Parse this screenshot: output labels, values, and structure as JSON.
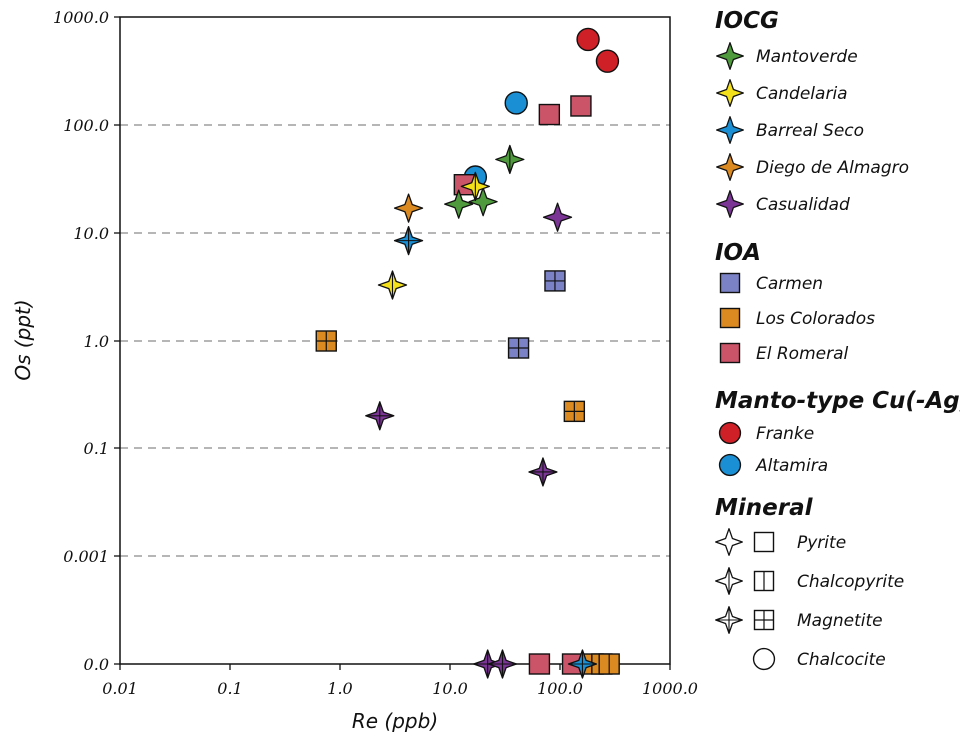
{
  "chart_data": {
    "type": "scatter",
    "xlabel": "Re (ppb)",
    "ylabel": "Os (ppt)",
    "x_scale": "log",
    "xlim": [
      0.01,
      1000
    ],
    "x_tick_values": [
      0.01,
      0.1,
      1,
      10,
      100,
      1000
    ],
    "x_tick_labels": [
      "0.01",
      "0.1",
      "1.0",
      "10.0",
      "100.0",
      "1000.0"
    ],
    "y_tick_labels": [
      "1000.0",
      "100.0",
      "10.0",
      "1.0",
      "0.1",
      "0.001",
      "0.0"
    ],
    "grid": "horizontal dashed",
    "legend_position": "right",
    "legend": [
      {
        "heading": "IOCG",
        "items": [
          {
            "label": "Mantoverde",
            "shape": "star",
            "color": "#4e9a3c"
          },
          {
            "label": "Candelaria",
            "shape": "star",
            "color": "#f4e11b"
          },
          {
            "label": "Barreal Seco",
            "shape": "star",
            "color": "#1a8fd4"
          },
          {
            "label": "Diego de Almagro",
            "shape": "star",
            "color": "#db8a22"
          },
          {
            "label": "Casualidad",
            "shape": "star",
            "color": "#7a3595"
          }
        ]
      },
      {
        "heading": "IOA",
        "items": [
          {
            "label": "Carmen",
            "shape": "square",
            "color": "#7c82c6"
          },
          {
            "label": "Los Colorados",
            "shape": "square",
            "color": "#db8a22"
          },
          {
            "label": "El Romeral",
            "shape": "square",
            "color": "#cb5468"
          }
        ]
      },
      {
        "heading": "Manto-type Cu(-Ag)",
        "items": [
          {
            "label": "Franke",
            "shape": "circle",
            "color": "#cf2027"
          },
          {
            "label": "Altamira",
            "shape": "circle",
            "color": "#1a8fd4"
          }
        ]
      },
      {
        "heading": "Mineral",
        "items": [
          {
            "label": "Pyrite",
            "shapes": [
              "star",
              "square"
            ],
            "mineral": "pyrite"
          },
          {
            "label": "Chalcopyrite",
            "shapes": [
              "star",
              "square"
            ],
            "mineral": "chalcopyrite"
          },
          {
            "label": "Magnetite",
            "shapes": [
              "star",
              "square"
            ],
            "mineral": "magnetite"
          },
          {
            "label": "Chalcocite",
            "shapes": [
              "circle"
            ],
            "mineral": "chalcocite"
          }
        ]
      }
    ],
    "points": [
      {
        "group": "Franke",
        "shape": "circle",
        "color": "#cf2027",
        "mineral": "chalcocite",
        "x": 180,
        "y": 620
      },
      {
        "group": "Franke",
        "shape": "circle",
        "color": "#cf2027",
        "mineral": "chalcocite",
        "x": 270,
        "y": 390
      },
      {
        "group": "Altamira",
        "shape": "circle",
        "color": "#1a8fd4",
        "mineral": "chalcocite",
        "x": 40,
        "y": 160
      },
      {
        "group": "Altamira",
        "shape": "circle",
        "color": "#1a8fd4",
        "mineral": "chalcocite",
        "x": 17,
        "y": 33
      },
      {
        "group": "El Romeral",
        "shape": "square",
        "color": "#cb5468",
        "mineral": "pyrite",
        "x": 80,
        "y": 125
      },
      {
        "group": "El Romeral",
        "shape": "square",
        "color": "#cb5468",
        "mineral": "pyrite",
        "x": 155,
        "y": 150
      },
      {
        "group": "El Romeral",
        "shape": "square",
        "color": "#cb5468",
        "mineral": "pyrite",
        "x": 13.5,
        "y": 28
      },
      {
        "group": "Mantoverde",
        "shape": "star",
        "color": "#4e9a3c",
        "mineral": "chalcopyrite",
        "x": 35,
        "y": 48
      },
      {
        "group": "Mantoverde",
        "shape": "star",
        "color": "#4e9a3c",
        "mineral": "pyrite",
        "x": 12,
        "y": 18.5
      },
      {
        "group": "Mantoverde",
        "shape": "star",
        "color": "#4e9a3c",
        "mineral": "pyrite",
        "x": 20,
        "y": 19.5
      },
      {
        "group": "Candelaria",
        "shape": "star",
        "color": "#f4e11b",
        "mineral": "chalcopyrite",
        "x": 17,
        "y": 27
      },
      {
        "group": "Candelaria",
        "shape": "star",
        "color": "#f4e11b",
        "mineral": "chalcopyrite",
        "x": 3,
        "y": 3.3
      },
      {
        "group": "Diego de Almagro",
        "shape": "star",
        "color": "#db8a22",
        "mineral": "pyrite",
        "x": 4.2,
        "y": 17
      },
      {
        "group": "Barreal Seco",
        "shape": "star",
        "color": "#1a8fd4",
        "mineral": "magnetite",
        "x": 4.2,
        "y": 8.5
      },
      {
        "group": "Casualidad",
        "shape": "star",
        "color": "#7a3595",
        "mineral": "pyrite",
        "x": 95,
        "y": 14
      },
      {
        "group": "Casualidad",
        "shape": "star",
        "color": "#7a3595",
        "mineral": "magnetite",
        "x": 2.3,
        "y": 0.2
      },
      {
        "group": "Casualidad",
        "shape": "star",
        "color": "#7a3595",
        "mineral": "magnetite",
        "x": 70,
        "y": 0.06
      },
      {
        "group": "Carmen",
        "shape": "square",
        "color": "#7c82c6",
        "mineral": "magnetite",
        "x": 90,
        "y": 3.6
      },
      {
        "group": "Carmen",
        "shape": "square",
        "color": "#7c82c6",
        "mineral": "magnetite",
        "x": 42,
        "y": 0.86
      },
      {
        "group": "Los Colorados",
        "shape": "square",
        "color": "#db8a22",
        "mineral": "magnetite",
        "x": 0.75,
        "y": 1.0
      },
      {
        "group": "Los Colorados",
        "shape": "square",
        "color": "#db8a22",
        "mineral": "magnetite",
        "x": 135,
        "y": 0.22
      },
      {
        "group": "Casualidad",
        "shape": "star",
        "color": "#7a3595",
        "mineral": "magnetite",
        "x": 22,
        "y": 0
      },
      {
        "group": "Casualidad",
        "shape": "star",
        "color": "#7a3595",
        "mineral": "magnetite",
        "x": 30,
        "y": 0
      },
      {
        "group": "El Romeral",
        "shape": "square",
        "color": "#cb5468",
        "mineral": "pyrite",
        "x": 65,
        "y": 0
      },
      {
        "group": "El Romeral",
        "shape": "square",
        "color": "#cb5468",
        "mineral": "pyrite",
        "x": 130,
        "y": 0
      },
      {
        "group": "Los Colorados",
        "shape": "square",
        "color": "#db8a22",
        "mineral": "chalcopyrite",
        "x": 200,
        "y": 0
      },
      {
        "group": "Los Colorados",
        "shape": "square",
        "color": "#db8a22",
        "mineral": "chalcopyrite",
        "x": 240,
        "y": 0
      },
      {
        "group": "Los Colorados",
        "shape": "square",
        "color": "#db8a22",
        "mineral": "chalcopyrite",
        "x": 280,
        "y": 0
      },
      {
        "group": "Barreal Seco",
        "shape": "star",
        "color": "#1a8fd4",
        "mineral": "magnetite",
        "x": 160,
        "y": 0
      }
    ]
  }
}
